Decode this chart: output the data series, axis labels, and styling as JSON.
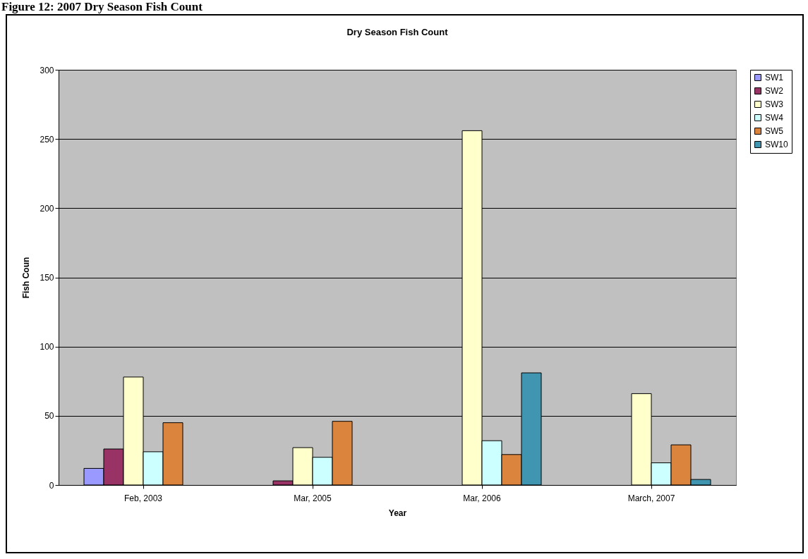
{
  "chart_data": {
    "type": "bar",
    "title": "Dry Season Fish Count",
    "xlabel": "Year",
    "ylabel": "Fish Coun",
    "annotations": [
      "Figure 12: 2007 Dry Season Fish Count"
    ],
    "categories": [
      "Feb, 2003",
      "Mar, 2005",
      "Mar, 2006",
      "March, 2007"
    ],
    "series": [
      {
        "name": "SW1",
        "color": "#9999ff",
        "values": [
          12,
          null,
          null,
          null
        ]
      },
      {
        "name": "SW2",
        "color": "#993366",
        "values": [
          26,
          3,
          null,
          null
        ]
      },
      {
        "name": "SW3",
        "color": "#ffffcc",
        "values": [
          78,
          27,
          256,
          66
        ]
      },
      {
        "name": "SW4",
        "color": "#ccffff",
        "values": [
          24,
          20,
          32,
          16
        ]
      },
      {
        "name": "SW5",
        "color": "#db843d",
        "values": [
          45,
          46,
          22,
          29
        ]
      },
      {
        "name": "SW10",
        "color": "#4096b0",
        "values": [
          null,
          null,
          81,
          4
        ]
      }
    ],
    "ylim": [
      0,
      300
    ],
    "yticks": [
      0,
      50,
      100,
      150,
      200,
      250,
      300
    ],
    "grid": "y",
    "legend": "right"
  }
}
